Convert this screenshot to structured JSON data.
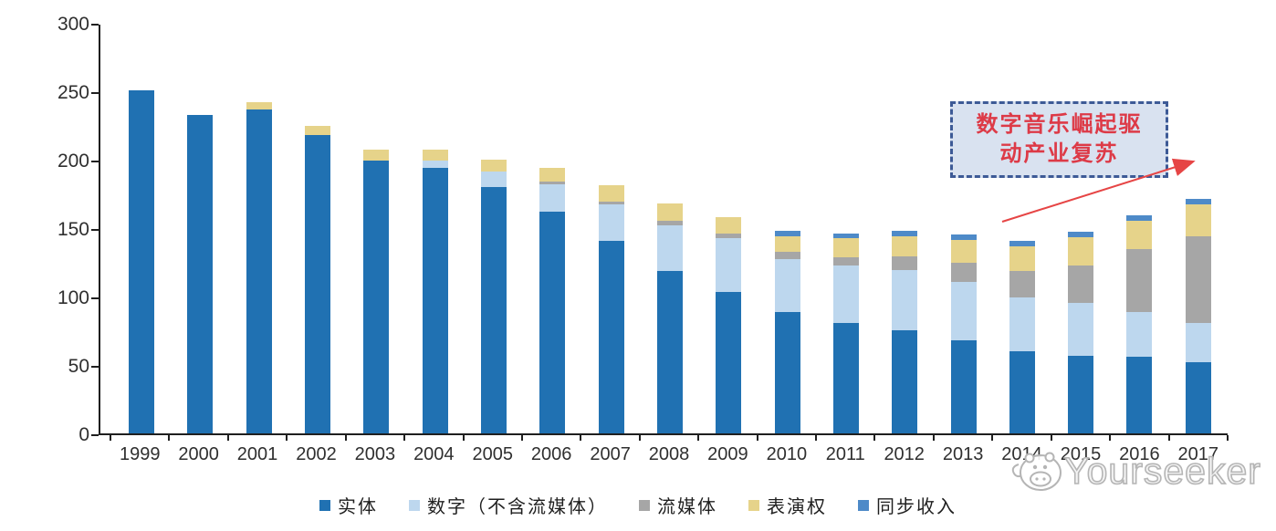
{
  "chart_data": {
    "type": "bar",
    "stacked": true,
    "title": "",
    "xlabel": "",
    "ylabel": "",
    "ylim": [
      0,
      300
    ],
    "yticks": [
      0,
      50,
      100,
      150,
      200,
      250,
      300
    ],
    "grid": false,
    "legend_position": "bottom",
    "categories": [
      "1999",
      "2000",
      "2001",
      "2002",
      "2003",
      "2004",
      "2005",
      "2006",
      "2007",
      "2008",
      "2009",
      "2010",
      "2011",
      "2012",
      "2013",
      "2014",
      "2015",
      "2016",
      "2017"
    ],
    "series": [
      {
        "name": "实体",
        "color": "#2071B2",
        "values": [
          252,
          234,
          238,
          219,
          200,
          195,
          181,
          163,
          141,
          119,
          104,
          89,
          81,
          76,
          68,
          60,
          57,
          56,
          52
        ]
      },
      {
        "name": "数字（不含流媒体）",
        "color": "#BDD7EE",
        "values": [
          0,
          0,
          0,
          0,
          0,
          5,
          11,
          20,
          27,
          34,
          39,
          39,
          42,
          44,
          43,
          40,
          39,
          33,
          29
        ]
      },
      {
        "name": "流媒体",
        "color": "#A6A6A6",
        "values": [
          0,
          0,
          0,
          0,
          0,
          0,
          0,
          2,
          2,
          3,
          4,
          5,
          6,
          10,
          14,
          19,
          27,
          46,
          64
        ]
      },
      {
        "name": "表演权",
        "color": "#E6D38A",
        "values": [
          0,
          0,
          5,
          7,
          8,
          8,
          9,
          10,
          12,
          13,
          12,
          12,
          14,
          15,
          17,
          18,
          21,
          21,
          23
        ]
      },
      {
        "name": "同步收入",
        "color": "#4E8AC8",
        "values": [
          0,
          0,
          0,
          0,
          0,
          0,
          0,
          0,
          0,
          0,
          0,
          4,
          4,
          4,
          4,
          4,
          4,
          4,
          4
        ]
      }
    ],
    "totals": [
      252,
      234,
      243,
      226,
      208,
      208,
      201,
      195,
      182,
      169,
      159,
      149,
      147,
      149,
      146,
      141,
      148,
      160,
      172
    ]
  },
  "annotation": {
    "line1": "数字音乐崛起驱",
    "line2": "动产业复苏",
    "fill_color": "#D9E2F0",
    "border_color": "#3D5A96",
    "text_color": "#DD3A47",
    "arrow_color": "#E64545"
  },
  "watermark": {
    "text": "Yourseeker",
    "logo": "hippo-mascot-icon"
  }
}
